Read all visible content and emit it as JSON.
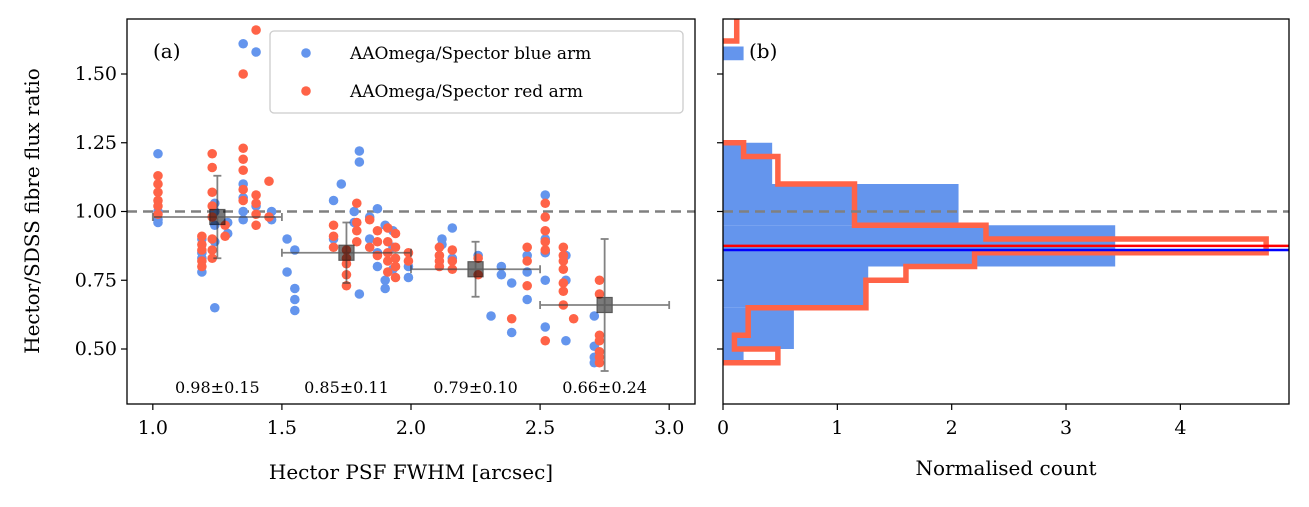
{
  "chart_data": [
    {
      "type": "scatter",
      "panel_label": "(a)",
      "xlabel": "Hector PSF FWHM [arcsec]",
      "ylabel": "Hector/SDSS fibre flux ratio",
      "xlim": [
        0.9,
        3.1
      ],
      "ylim": [
        0.3,
        1.7
      ],
      "xticks": [
        "1.0",
        "1.5",
        "2.0",
        "2.5",
        "3.0"
      ],
      "yticks": [
        "0.50",
        "0.75",
        "1.00",
        "1.25",
        "1.50"
      ],
      "reference_line": 1.0,
      "colors": {
        "blue": "#6495ED",
        "red": "#FF6347",
        "binned": "#404040"
      },
      "legend": [
        "AAOmega/Spector blue arm",
        "AAOmega/Spector red arm"
      ],
      "series": [
        {
          "name": "AAOmega/Spector blue arm",
          "points": [
            [
              1.02,
              1.21
            ],
            [
              1.02,
              0.97
            ],
            [
              1.02,
              1.0
            ],
            [
              1.02,
              0.96
            ],
            [
              1.19,
              0.9
            ],
            [
              1.19,
              0.85
            ],
            [
              1.19,
              0.78
            ],
            [
              1.19,
              0.83
            ],
            [
              1.24,
              1.0
            ],
            [
              1.24,
              0.95
            ],
            [
              1.24,
              0.89
            ],
            [
              1.24,
              0.65
            ],
            [
              1.24,
              1.03
            ],
            [
              1.29,
              0.96
            ],
            [
              1.29,
              0.92
            ],
            [
              1.35,
              1.61
            ],
            [
              1.35,
              1.1
            ],
            [
              1.35,
              1.05
            ],
            [
              1.35,
              1.0
            ],
            [
              1.35,
              0.97
            ],
            [
              1.4,
              1.58
            ],
            [
              1.4,
              1.02
            ],
            [
              1.46,
              1.0
            ],
            [
              1.46,
              0.97
            ],
            [
              1.52,
              0.9
            ],
            [
              1.52,
              0.78
            ],
            [
              1.55,
              0.68
            ],
            [
              1.55,
              0.64
            ],
            [
              1.55,
              0.72
            ],
            [
              1.55,
              0.86
            ],
            [
              1.7,
              1.04
            ],
            [
              1.7,
              0.9
            ],
            [
              1.73,
              1.1
            ],
            [
              1.78,
              0.96
            ],
            [
              1.78,
              1.0
            ],
            [
              1.8,
              1.22
            ],
            [
              1.8,
              1.18
            ],
            [
              1.8,
              0.7
            ],
            [
              1.84,
              0.98
            ],
            [
              1.84,
              0.9
            ],
            [
              1.87,
              1.01
            ],
            [
              1.87,
              0.85
            ],
            [
              1.87,
              0.8
            ],
            [
              1.9,
              0.75
            ],
            [
              1.9,
              0.72
            ],
            [
              1.9,
              0.95
            ],
            [
              1.93,
              0.87
            ],
            [
              1.93,
              0.93
            ],
            [
              1.93,
              0.79
            ],
            [
              1.99,
              0.8
            ],
            [
              1.99,
              0.76
            ],
            [
              2.12,
              0.9
            ],
            [
              2.12,
              0.88
            ],
            [
              2.16,
              0.94
            ],
            [
              2.16,
              0.83
            ],
            [
              2.26,
              0.84
            ],
            [
              2.31,
              0.62
            ],
            [
              2.35,
              0.8
            ],
            [
              2.35,
              0.77
            ],
            [
              2.39,
              0.56
            ],
            [
              2.39,
              0.74
            ],
            [
              2.45,
              0.84
            ],
            [
              2.45,
              0.78
            ],
            [
              2.45,
              0.68
            ],
            [
              2.52,
              1.06
            ],
            [
              2.52,
              0.9
            ],
            [
              2.52,
              0.75
            ],
            [
              2.52,
              0.58
            ],
            [
              2.52,
              0.85
            ],
            [
              2.6,
              0.84
            ],
            [
              2.6,
              0.53
            ],
            [
              2.6,
              0.75
            ],
            [
              2.71,
              0.62
            ],
            [
              2.71,
              0.47
            ],
            [
              2.71,
              0.45
            ],
            [
              2.71,
              0.51
            ]
          ]
        },
        {
          "name": "AAOmega/Spector red arm",
          "points": [
            [
              1.02,
              1.13
            ],
            [
              1.02,
              1.1
            ],
            [
              1.02,
              1.07
            ],
            [
              1.02,
              1.04
            ],
            [
              1.02,
              1.02
            ],
            [
              1.02,
              0.99
            ],
            [
              1.19,
              0.91
            ],
            [
              1.19,
              0.88
            ],
            [
              1.19,
              0.86
            ],
            [
              1.19,
              0.82
            ],
            [
              1.19,
              0.8
            ],
            [
              1.23,
              1.21
            ],
            [
              1.23,
              1.16
            ],
            [
              1.23,
              1.07
            ],
            [
              1.23,
              1.02
            ],
            [
              1.23,
              0.98
            ],
            [
              1.23,
              0.9
            ],
            [
              1.23,
              0.86
            ],
            [
              1.23,
              0.83
            ],
            [
              1.28,
              0.95
            ],
            [
              1.28,
              0.91
            ],
            [
              1.35,
              1.5
            ],
            [
              1.35,
              1.23
            ],
            [
              1.35,
              1.19
            ],
            [
              1.35,
              1.15
            ],
            [
              1.35,
              1.08
            ],
            [
              1.35,
              1.04
            ],
            [
              1.4,
              1.66
            ],
            [
              1.4,
              1.06
            ],
            [
              1.4,
              1.03
            ],
            [
              1.4,
              0.99
            ],
            [
              1.4,
              0.95
            ],
            [
              1.45,
              1.11
            ],
            [
              1.45,
              0.98
            ],
            [
              1.7,
              0.95
            ],
            [
              1.7,
              0.91
            ],
            [
              1.7,
              0.87
            ],
            [
              1.75,
              0.86
            ],
            [
              1.75,
              0.83
            ],
            [
              1.75,
              0.81
            ],
            [
              1.75,
              0.77
            ],
            [
              1.75,
              0.73
            ],
            [
              1.79,
              1.03
            ],
            [
              1.79,
              0.96
            ],
            [
              1.79,
              0.93
            ],
            [
              1.79,
              0.89
            ],
            [
              1.84,
              0.97
            ],
            [
              1.84,
              0.87
            ],
            [
              1.87,
              0.93
            ],
            [
              1.87,
              0.89
            ],
            [
              1.87,
              0.84
            ],
            [
              1.91,
              0.94
            ],
            [
              1.91,
              0.89
            ],
            [
              1.91,
              0.85
            ],
            [
              1.91,
              0.82
            ],
            [
              1.91,
              0.78
            ],
            [
              1.94,
              0.92
            ],
            [
              1.94,
              0.87
            ],
            [
              1.94,
              0.83
            ],
            [
              1.94,
              0.8
            ],
            [
              1.94,
              0.76
            ],
            [
              1.99,
              0.85
            ],
            [
              1.99,
              0.82
            ],
            [
              2.11,
              0.87
            ],
            [
              2.11,
              0.84
            ],
            [
              2.11,
              0.82
            ],
            [
              2.11,
              0.8
            ],
            [
              2.16,
              0.86
            ],
            [
              2.16,
              0.82
            ],
            [
              2.16,
              0.79
            ],
            [
              2.26,
              0.83
            ],
            [
              2.26,
              0.77
            ],
            [
              2.39,
              0.61
            ],
            [
              2.45,
              0.87
            ],
            [
              2.45,
              0.82
            ],
            [
              2.45,
              0.73
            ],
            [
              2.52,
              1.03
            ],
            [
              2.52,
              0.98
            ],
            [
              2.52,
              0.93
            ],
            [
              2.52,
              0.89
            ],
            [
              2.52,
              0.86
            ],
            [
              2.52,
              0.53
            ],
            [
              2.59,
              0.87
            ],
            [
              2.59,
              0.84
            ],
            [
              2.59,
              0.82
            ],
            [
              2.59,
              0.79
            ],
            [
              2.59,
              0.74
            ],
            [
              2.59,
              0.71
            ],
            [
              2.59,
              0.66
            ],
            [
              2.63,
              0.61
            ],
            [
              2.73,
              0.75
            ],
            [
              2.73,
              0.7
            ],
            [
              2.73,
              0.55
            ],
            [
              2.73,
              0.53
            ],
            [
              2.73,
              0.49
            ],
            [
              2.73,
              0.47
            ],
            [
              2.73,
              0.45
            ]
          ]
        }
      ],
      "binned": [
        {
          "x": 1.25,
          "y": 0.98,
          "xerr_low": 0.25,
          "xerr_high": 0.25,
          "yerr": 0.15,
          "label": "0.98±0.15"
        },
        {
          "x": 1.75,
          "y": 0.85,
          "xerr_low": 0.25,
          "xerr_high": 0.25,
          "yerr": 0.11,
          "label": "0.85±0.11"
        },
        {
          "x": 2.25,
          "y": 0.79,
          "xerr_low": 0.25,
          "xerr_high": 0.25,
          "yerr": 0.1,
          "label": "0.79±0.10"
        },
        {
          "x": 2.75,
          "y": 0.66,
          "xerr_low": 0.25,
          "xerr_high": 0.25,
          "yerr": 0.24,
          "label": "0.66±0.24"
        }
      ]
    },
    {
      "type": "histogram",
      "panel_label": "(b)",
      "xlabel": "Normalised count",
      "xlim": [
        0,
        4.95
      ],
      "ylim": [
        0.3,
        1.7
      ],
      "xticks": [
        "0",
        "1",
        "2",
        "3",
        "4"
      ],
      "reference_line": 1.0,
      "blue_median": 0.86,
      "red_median": 0.875,
      "blue_bins": [
        {
          "y0": 0.45,
          "y1": 0.5,
          "count": 0.18
        },
        {
          "y0": 0.5,
          "y1": 0.65,
          "count": 0.62
        },
        {
          "y0": 0.65,
          "y1": 0.8,
          "count": 1.27
        },
        {
          "y0": 0.8,
          "y1": 0.95,
          "count": 3.43
        },
        {
          "y0": 0.95,
          "y1": 1.1,
          "count": 2.06
        },
        {
          "y0": 1.1,
          "y1": 1.25,
          "count": 0.43
        },
        {
          "y0": 1.55,
          "y1": 1.6,
          "count": 0.18
        }
      ],
      "red_bins": [
        {
          "y0": 0.45,
          "y1": 0.5,
          "count": 0.48
        },
        {
          "y0": 0.5,
          "y1": 0.55,
          "count": 0.1
        },
        {
          "y0": 0.55,
          "y1": 0.65,
          "count": 0.22
        },
        {
          "y0": 0.65,
          "y1": 0.75,
          "count": 1.25
        },
        {
          "y0": 0.75,
          "y1": 0.8,
          "count": 1.6
        },
        {
          "y0": 0.8,
          "y1": 0.85,
          "count": 2.2
        },
        {
          "y0": 0.85,
          "y1": 0.9,
          "count": 4.75
        },
        {
          "y0": 0.9,
          "y1": 0.95,
          "count": 2.3
        },
        {
          "y0": 0.95,
          "y1": 1.0,
          "count": 1.15
        },
        {
          "y0": 1.0,
          "y1": 1.1,
          "count": 1.15
        },
        {
          "y0": 1.1,
          "y1": 1.2,
          "count": 0.48
        },
        {
          "y0": 1.2,
          "y1": 1.25,
          "count": 0.18
        }
      ]
    }
  ]
}
